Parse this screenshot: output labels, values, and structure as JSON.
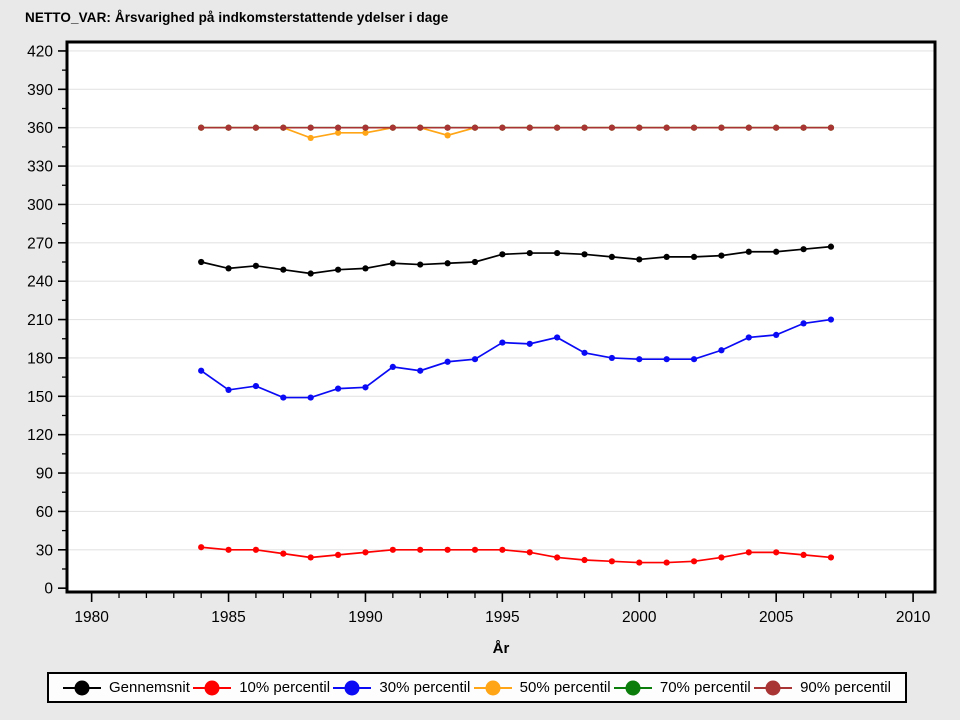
{
  "header": {
    "title": "NETTO_VAR: Årsvarighed på indkomsterstattende ydelser i dage"
  },
  "colors": {
    "figure_bg": "#e9e9e9",
    "plot_bg": "#ffffff",
    "grid": "#e4e4e4",
    "frame": "#000000",
    "legend_bg": "#fdfdfd"
  },
  "chart_data": {
    "type": "line",
    "title": "NETTO_VAR: Årsvarighed på indkomsterstattende ydelser i dage",
    "xlabel": "År",
    "ylabel": "",
    "x": [
      1984,
      1985,
      1986,
      1987,
      1988,
      1989,
      1990,
      1991,
      1992,
      1993,
      1994,
      1995,
      1996,
      1997,
      1998,
      1999,
      2000,
      2001,
      2002,
      2003,
      2004,
      2005,
      2006,
      2007
    ],
    "xticks": [
      1980,
      1985,
      1990,
      1995,
      2000,
      2005,
      2010
    ],
    "xtick_minor_step": 1,
    "ylim": [
      0,
      420
    ],
    "ytick_step": 30,
    "ytick_minor_step": 15,
    "grid": "horizontal",
    "legend_position": "bottom",
    "series": [
      {
        "name": "Gennemsnit",
        "color": "#000000",
        "values": [
          255,
          250,
          252,
          249,
          246,
          249,
          250,
          254,
          253,
          254,
          255,
          261,
          262,
          262,
          261,
          259,
          257,
          259,
          259,
          260,
          263,
          263,
          265,
          267
        ]
      },
      {
        "name": "10% percentil",
        "color": "#ff0000",
        "values": [
          32,
          30,
          30,
          27,
          24,
          26,
          28,
          30,
          30,
          30,
          30,
          30,
          28,
          24,
          22,
          21,
          20,
          20,
          21,
          24,
          28,
          28,
          26,
          24
        ]
      },
      {
        "name": "30% percentil",
        "color": "#0a0af5",
        "values": [
          170,
          155,
          158,
          149,
          149,
          156,
          157,
          173,
          170,
          177,
          179,
          192,
          191,
          196,
          184,
          180,
          179,
          179,
          179,
          186,
          196,
          198,
          207,
          210
        ]
      },
      {
        "name": "50% percentil",
        "color": "#ffa516",
        "values": [
          360,
          360,
          360,
          360,
          352,
          356,
          356,
          360,
          360,
          354,
          360,
          360,
          360,
          360,
          360,
          360,
          360,
          360,
          360,
          360,
          360,
          360,
          360,
          360
        ]
      },
      {
        "name": "70% percentil",
        "color": "#0b7d0b",
        "values": [
          360,
          360,
          360,
          360,
          360,
          360,
          360,
          360,
          360,
          360,
          360,
          360,
          360,
          360,
          360,
          360,
          360,
          360,
          360,
          360,
          360,
          360,
          360,
          360
        ]
      },
      {
        "name": "90% percentil",
        "color": "#a83434",
        "values": [
          360,
          360,
          360,
          360,
          360,
          360,
          360,
          360,
          360,
          360,
          360,
          360,
          360,
          360,
          360,
          360,
          360,
          360,
          360,
          360,
          360,
          360,
          360,
          360
        ]
      }
    ]
  }
}
